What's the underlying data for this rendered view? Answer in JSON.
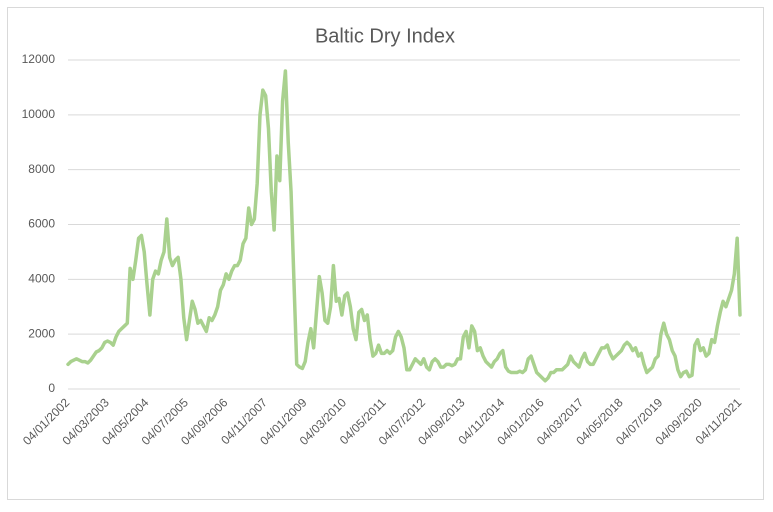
{
  "chart_data": {
    "type": "line",
    "title": "Baltic Dry Index",
    "categories": [
      "04/01/2002",
      null,
      null,
      null,
      null,
      null,
      null,
      null,
      null,
      null,
      null,
      null,
      null,
      null,
      "04/03/2003",
      null,
      null,
      null,
      null,
      null,
      null,
      null,
      null,
      null,
      null,
      null,
      null,
      null,
      "04/05/2004",
      null,
      null,
      null,
      null,
      null,
      null,
      null,
      null,
      null,
      null,
      null,
      null,
      null,
      "04/07/2005",
      null,
      null,
      null,
      null,
      null,
      null,
      null,
      null,
      null,
      null,
      null,
      null,
      null,
      "04/09/2006",
      null,
      null,
      null,
      null,
      null,
      null,
      null,
      null,
      null,
      null,
      null,
      null,
      null,
      "04/11/2007",
      null,
      null,
      null,
      null,
      null,
      null,
      null,
      null,
      null,
      null,
      null,
      null,
      null,
      "04/01/2009",
      null,
      null,
      null,
      null,
      null,
      null,
      null,
      null,
      null,
      null,
      null,
      null,
      null,
      "04/03/2010",
      null,
      null,
      null,
      null,
      null,
      null,
      null,
      null,
      null,
      null,
      null,
      null,
      null,
      "04/05/2011",
      null,
      null,
      null,
      null,
      null,
      null,
      null,
      null,
      null,
      null,
      null,
      null,
      null,
      "04/07/2012",
      null,
      null,
      null,
      null,
      null,
      null,
      null,
      null,
      null,
      null,
      null,
      null,
      null,
      "04/09/2013",
      null,
      null,
      null,
      null,
      null,
      null,
      null,
      null,
      null,
      null,
      null,
      null,
      null,
      "04/11/2014",
      null,
      null,
      null,
      null,
      null,
      null,
      null,
      null,
      null,
      null,
      null,
      null,
      null,
      "04/01/2016",
      null,
      null,
      null,
      null,
      null,
      null,
      null,
      null,
      null,
      null,
      null,
      null,
      null,
      "04/03/2017",
      null,
      null,
      null,
      null,
      null,
      null,
      null,
      null,
      null,
      null,
      null,
      null,
      null,
      "04/05/2018",
      null,
      null,
      null,
      null,
      null,
      null,
      null,
      null,
      null,
      null,
      null,
      null,
      null,
      "04/07/2019",
      null,
      null,
      null,
      null,
      null,
      null,
      null,
      null,
      null,
      null,
      null,
      null,
      null,
      "04/09/2020",
      null,
      null,
      null,
      null,
      null,
      null,
      null,
      null,
      null,
      null,
      null,
      null,
      null,
      "04/11/2021"
    ],
    "values": [
      900,
      1000,
      1050,
      1100,
      1050,
      1000,
      1000,
      950,
      1050,
      1200,
      1350,
      1400,
      1500,
      1700,
      1750,
      1700,
      1600,
      1900,
      2100,
      2200,
      2300,
      2400,
      4400,
      4000,
      4700,
      5500,
      5600,
      5000,
      3800,
      2700,
      4000,
      4300,
      4200,
      4700,
      5000,
      6200,
      4800,
      4500,
      4700,
      4800,
      4000,
      2600,
      1800,
      2500,
      3200,
      2900,
      2400,
      2500,
      2300,
      2100,
      2600,
      2500,
      2700,
      3000,
      3600,
      3800,
      4200,
      4000,
      4300,
      4500,
      4500,
      4700,
      5300,
      5500,
      6600,
      6000,
      6200,
      7500,
      10000,
      10900,
      10700,
      9500,
      7200,
      5800,
      8500,
      7600,
      10500,
      11600,
      9000,
      7200,
      4000,
      900,
      800,
      750,
      1000,
      1700,
      2200,
      1500,
      2800,
      4100,
      3500,
      2500,
      2400,
      3000,
      4500,
      3200,
      3300,
      2700,
      3400,
      3500,
      3000,
      2200,
      1800,
      2800,
      2900,
      2500,
      2700,
      1800,
      1200,
      1300,
      1600,
      1300,
      1300,
      1400,
      1300,
      1400,
      1900,
      2100,
      1900,
      1500,
      700,
      700,
      900,
      1100,
      1000,
      900,
      1100,
      800,
      700,
      1000,
      1100,
      1000,
      800,
      800,
      900,
      900,
      850,
      900,
      1100,
      1100,
      1900,
      2100,
      1500,
      2300,
      2100,
      1400,
      1500,
      1200,
      1000,
      900,
      800,
      1000,
      1100,
      1300,
      1400,
      800,
      650,
      600,
      600,
      600,
      650,
      600,
      700,
      1100,
      1200,
      900,
      600,
      500,
      400,
      300,
      400,
      600,
      600,
      700,
      700,
      700,
      800,
      900,
      1200,
      1000,
      900,
      800,
      1100,
      1300,
      1000,
      900,
      900,
      1100,
      1300,
      1500,
      1500,
      1600,
      1300,
      1100,
      1200,
      1300,
      1400,
      1600,
      1700,
      1600,
      1400,
      1500,
      1200,
      1300,
      900,
      600,
      700,
      800,
      1100,
      1200,
      2000,
      2400,
      2000,
      1800,
      1400,
      1200,
      700,
      450,
      600,
      650,
      450,
      500,
      1600,
      1800,
      1400,
      1500,
      1200,
      1300,
      1800,
      1700,
      2300,
      2800,
      3200,
      3000,
      3300,
      3600,
      4200,
      5500,
      2700
    ],
    "color": "#a9d18e",
    "ylim": [
      0,
      12000
    ],
    "yticks": [
      0,
      2000,
      4000,
      6000,
      8000,
      10000,
      12000
    ],
    "grid": true
  }
}
